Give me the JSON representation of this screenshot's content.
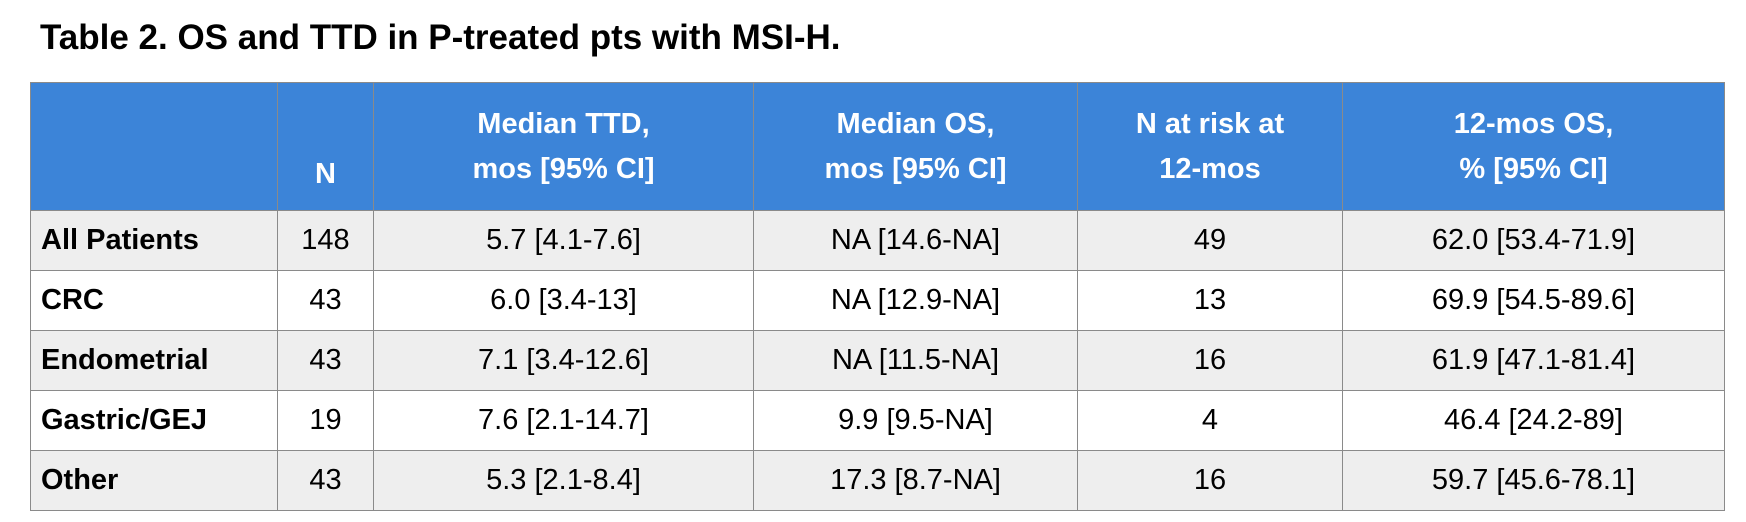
{
  "title": "Table 2. OS and TTD in P-treated pts with MSI-H.",
  "colors": {
    "header_bg": "#3c84d8",
    "header_text": "#ffffff",
    "row_shaded": "#eeeeee",
    "row_plain": "#ffffff",
    "border": "#8a8a8a"
  },
  "table": {
    "headers": [
      {
        "lines": [
          "",
          ""
        ]
      },
      {
        "lines": [
          "",
          "N"
        ]
      },
      {
        "lines": [
          "Median TTD,",
          "mos [95% CI]"
        ]
      },
      {
        "lines": [
          "Median OS,",
          "mos [95% CI]"
        ]
      },
      {
        "lines": [
          "N at risk at",
          "12-mos"
        ]
      },
      {
        "lines": [
          "12-mos OS,",
          "% [95% CI]"
        ]
      }
    ],
    "rows": [
      {
        "label": "All Patients",
        "n": "148",
        "ttd": "5.7 [4.1-7.6]",
        "os": "NA [14.6-NA]",
        "risk": "49",
        "os12": "62.0 [53.4-71.9]"
      },
      {
        "label": "CRC",
        "n": "43",
        "ttd": "6.0 [3.4-13]",
        "os": "NA [12.9-NA]",
        "risk": "13",
        "os12": "69.9 [54.5-89.6]"
      },
      {
        "label": "Endometrial",
        "n": "43",
        "ttd": "7.1 [3.4-12.6]",
        "os": "NA [11.5-NA]",
        "risk": "16",
        "os12": "61.9 [47.1-81.4]"
      },
      {
        "label": "Gastric/GEJ",
        "n": "19",
        "ttd": "7.6 [2.1-14.7]",
        "os": "9.9 [9.5-NA]",
        "risk": "4",
        "os12": "46.4 [24.2-89]"
      },
      {
        "label": "Other",
        "n": "43",
        "ttd": "5.3 [2.1-8.4]",
        "os": "17.3 [8.7-NA]",
        "risk": "16",
        "os12": "59.7 [45.6-78.1]"
      }
    ]
  }
}
